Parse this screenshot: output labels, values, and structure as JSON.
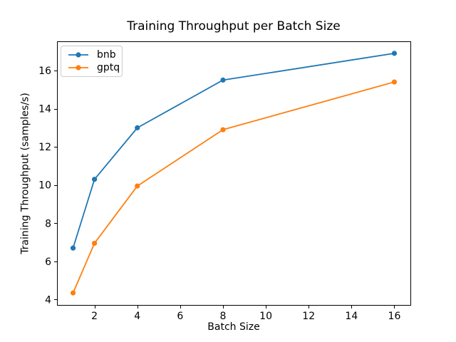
{
  "figure": {
    "background": "#ffffff"
  },
  "chart_data": {
    "type": "line",
    "title": "Training Throughput per Batch Size",
    "xlabel": "Batch Size",
    "ylabel": "Training Throughput (samples/s)",
    "x": [
      1,
      2,
      4,
      8,
      16
    ],
    "series": [
      {
        "name": "bnb",
        "color": "#1f77b4",
        "values": [
          6.7,
          10.3,
          13.0,
          15.5,
          16.9
        ]
      },
      {
        "name": "gptq",
        "color": "#ff7f0e",
        "values": [
          4.35,
          6.95,
          9.95,
          12.9,
          15.4
        ]
      }
    ],
    "xticks": [
      2,
      4,
      6,
      8,
      10,
      12,
      14,
      16
    ],
    "yticks": [
      4,
      6,
      8,
      10,
      12,
      14,
      16
    ],
    "xlim": [
      0.25,
      16.75
    ],
    "ylim": [
      3.72,
      17.53
    ],
    "grid": false,
    "legend_position": "upper left",
    "marker": "o",
    "spine_color": "#000000",
    "tick_label_color": "#000000"
  }
}
